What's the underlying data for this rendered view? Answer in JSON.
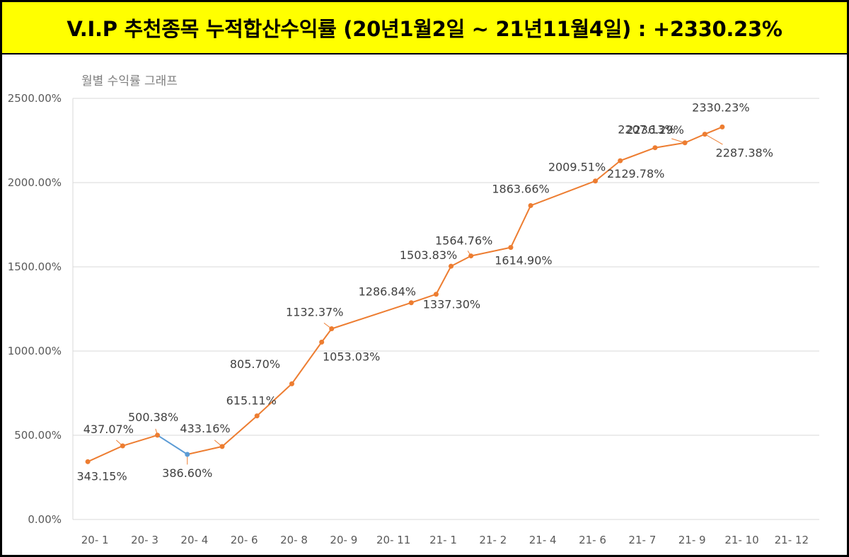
{
  "header": {
    "title": "V.I.P 추천종목 누적합산수익률 (20년1월2일 ~ 21년11월4일) : +2330.23%"
  },
  "chart_data": {
    "type": "line",
    "title": "월별 수익률 그래프",
    "xlabel": "",
    "ylabel": "",
    "ylim": [
      0,
      2500
    ],
    "y_ticks": [
      "0.00%",
      "500.00%",
      "1000.00%",
      "1500.00%",
      "2000.00%",
      "2500.00%"
    ],
    "x_ticks": [
      "20- 1",
      "20- 3",
      "20- 4",
      "20- 6",
      "20- 8",
      "20- 9",
      "20- 11",
      "21- 1",
      "21- 2",
      "21- 4",
      "21- 6",
      "21- 7",
      "21- 9",
      "21- 10",
      "21- 12"
    ],
    "grid": true,
    "line_color": "#ed7d31",
    "down_segment_color": "#5b9bd5",
    "points": [
      {
        "x": 0.3,
        "y": 343.15,
        "label": "343.15%"
      },
      {
        "x": 1.0,
        "y": 437.07,
        "label": "437.07%"
      },
      {
        "x": 1.7,
        "y": 500.38,
        "label": "500.38%"
      },
      {
        "x": 2.3,
        "y": 386.6,
        "label": "386.60%"
      },
      {
        "x": 3.0,
        "y": 433.16,
        "label": "433.16%"
      },
      {
        "x": 3.7,
        "y": 615.11,
        "label": "615.11%"
      },
      {
        "x": 4.4,
        "y": 805.7,
        "label": "805.70%"
      },
      {
        "x": 5.0,
        "y": 1053.03,
        "label": "1053.03%"
      },
      {
        "x": 5.2,
        "y": 1132.37,
        "label": "1132.37%"
      },
      {
        "x": 6.8,
        "y": 1286.84,
        "label": "1286.84%"
      },
      {
        "x": 7.3,
        "y": 1337.3,
        "label": "1337.30%"
      },
      {
        "x": 7.6,
        "y": 1503.83,
        "label": "1503.83%"
      },
      {
        "x": 8.0,
        "y": 1564.76,
        "label": "1564.76%"
      },
      {
        "x": 8.8,
        "y": 1614.9,
        "label": "1614.90%"
      },
      {
        "x": 9.2,
        "y": 1863.66,
        "label": "1863.66%"
      },
      {
        "x": 10.5,
        "y": 2009.51,
        "label": "2009.51%"
      },
      {
        "x": 11.0,
        "y": 2129.78,
        "label": "2129.78%"
      },
      {
        "x": 11.7,
        "y": 2207.13,
        "label": "2207.13%"
      },
      {
        "x": 12.3,
        "y": 2236.29,
        "label": "2236.29%"
      },
      {
        "x": 12.7,
        "y": 2287.38,
        "label": "2287.38%"
      },
      {
        "x": 13.05,
        "y": 2330.23,
        "label": "2330.23%"
      }
    ]
  }
}
